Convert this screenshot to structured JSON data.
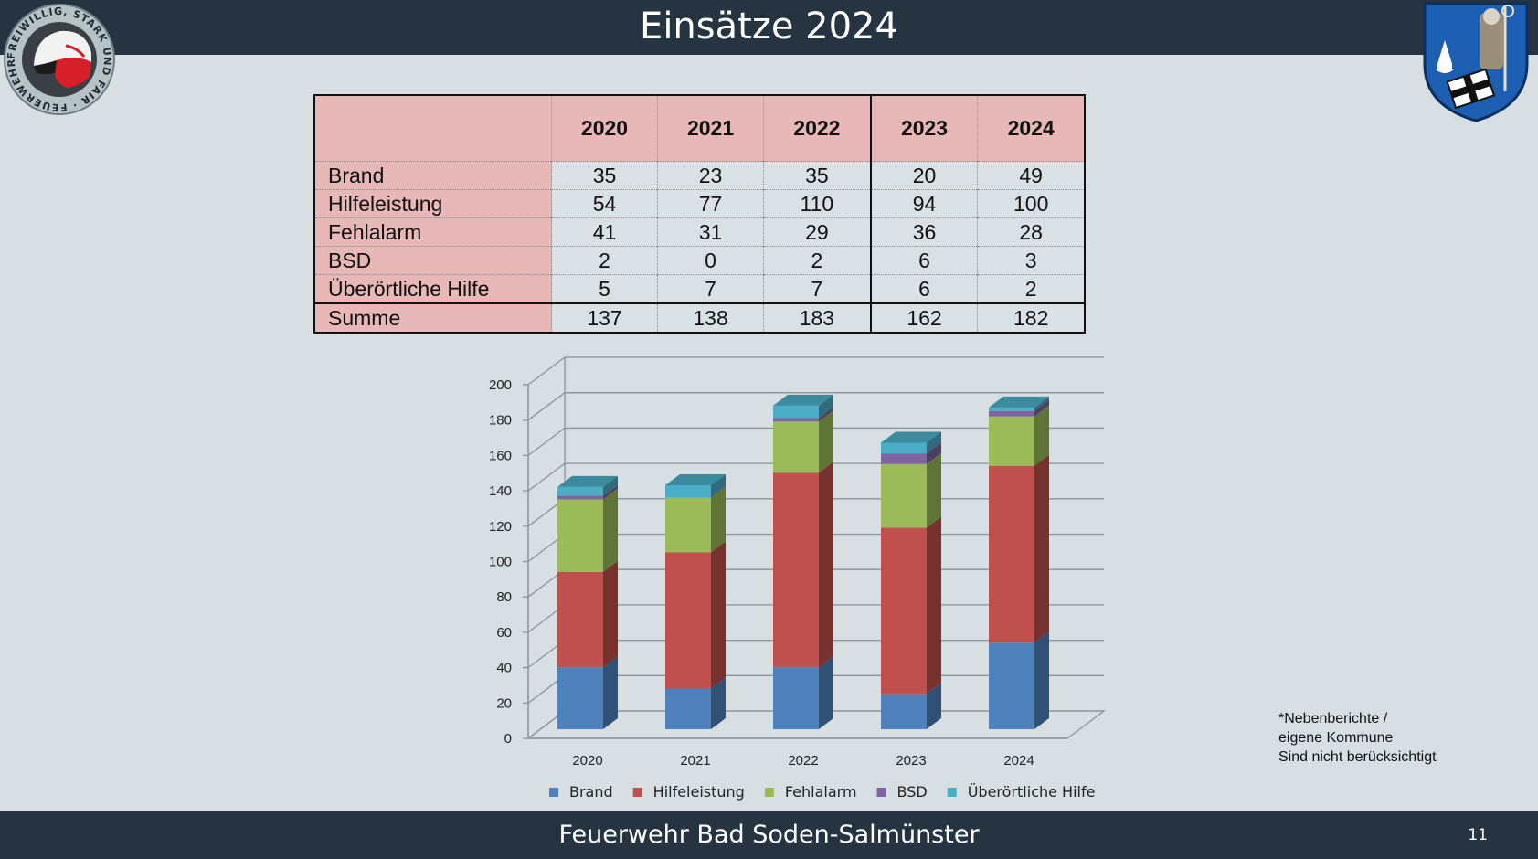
{
  "header": {
    "title": "Einsätze 2024"
  },
  "footer": {
    "text": "Feuerwehr Bad Soden-Salmünster",
    "page_number": "11"
  },
  "logos": {
    "left": {
      "icon": "fire-brigade-helmet-badge-icon",
      "ring_text": "FREIWILLIG, STARK UND FAIR · FEUERWEHR"
    },
    "right": {
      "icon": "municipal-coat-of-arms-icon"
    }
  },
  "note": {
    "lines": [
      "*Nebenberichte /",
      "eigene Kommune",
      "Sind nicht berücksichtigt"
    ]
  },
  "table": {
    "years": [
      "2020",
      "2021",
      "2022",
      "2023",
      "2024"
    ],
    "rows": [
      {
        "label": "Brand",
        "values": [
          "35",
          "23",
          "35",
          "20",
          "49"
        ]
      },
      {
        "label": "Hilfeleistung",
        "values": [
          "54",
          "77",
          "110",
          "94",
          "100"
        ]
      },
      {
        "label": "Fehlalarm",
        "values": [
          "41",
          "31",
          "29",
          "36",
          "28"
        ]
      },
      {
        "label": "BSD",
        "values": [
          "2",
          "0",
          "2",
          "6",
          "3"
        ]
      },
      {
        "label": "Überörtliche Hilfe",
        "values": [
          "5",
          "7",
          "7",
          "6",
          "2"
        ]
      },
      {
        "label": "Summe",
        "values": [
          "137",
          "138",
          "183",
          "162",
          "182"
        ]
      }
    ]
  },
  "chart_data": {
    "type": "bar",
    "stacked": true,
    "three_d": true,
    "categories": [
      "2020",
      "2021",
      "2022",
      "2023",
      "2024"
    ],
    "series": [
      {
        "name": "Brand",
        "values": [
          35,
          23,
          35,
          20,
          49
        ],
        "color": "#4f81bd"
      },
      {
        "name": "Hilfeleistung",
        "values": [
          54,
          77,
          110,
          94,
          100
        ],
        "color": "#c0504d"
      },
      {
        "name": "Fehlalarm",
        "values": [
          41,
          31,
          29,
          36,
          28
        ],
        "color": "#9bbb59"
      },
      {
        "name": "BSD",
        "values": [
          2,
          0,
          2,
          6,
          3
        ],
        "color": "#8064a2"
      },
      {
        "name": "Überörtliche Hilfe",
        "values": [
          5,
          7,
          7,
          6,
          2
        ],
        "color": "#4bacc6"
      }
    ],
    "ylim": [
      0,
      200
    ],
    "yticks": [
      "0",
      "20",
      "40",
      "60",
      "80",
      "100",
      "120",
      "140",
      "160",
      "180",
      "200"
    ],
    "grid": true,
    "legend": "bottom",
    "title": "",
    "xlabel": "",
    "ylabel": ""
  }
}
